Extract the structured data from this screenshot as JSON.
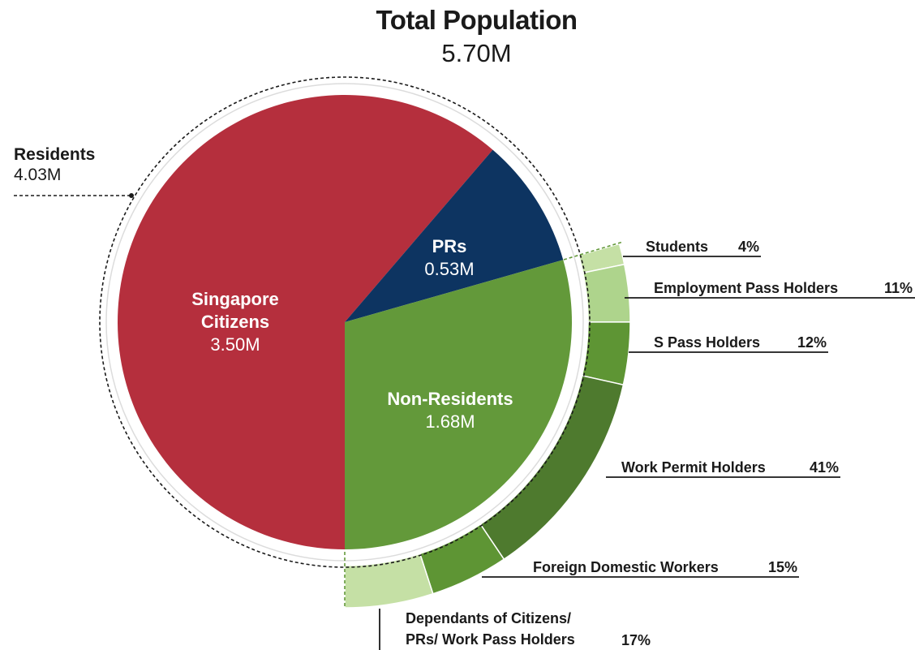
{
  "title": "Total Population",
  "total_value": "5.70M",
  "residents": {
    "label": "Residents",
    "value": "4.03M"
  },
  "labels": {
    "citizens_line1": "Singapore",
    "citizens_line2": "Citizens",
    "citizens_value": "3.50M",
    "prs_name": "PRs",
    "prs_value": "0.53M",
    "nonres_name": "Non-Residents",
    "nonres_value": "1.68M",
    "dependants_line1": "Dependants of Citizens/",
    "dependants_line2": "PRs/ Work Pass Holders"
  },
  "chart_data": [
    {
      "type": "pie",
      "title": "Total Population",
      "slices": [
        {
          "name": "Singapore Citizens",
          "value": 3.5,
          "unit": "M",
          "color": "#b52f3d"
        },
        {
          "name": "PRs",
          "value": 0.53,
          "unit": "M",
          "color": "#0d3461"
        },
        {
          "name": "Non-Residents",
          "value": 1.68,
          "unit": "M",
          "color": "#63993a"
        }
      ]
    },
    {
      "type": "pie",
      "title": "Non-Residents",
      "slices": [
        {
          "name": "Students",
          "value": 4,
          "unit": "%",
          "color": "#c5e0a5"
        },
        {
          "name": "Employment Pass Holders",
          "value": 11,
          "unit": "%",
          "color": "#aed48c"
        },
        {
          "name": "S Pass Holders",
          "value": 12,
          "unit": "%",
          "color": "#5e9534"
        },
        {
          "name": "Work Permit Holders",
          "value": 41,
          "unit": "%",
          "color": "#4e7a2e"
        },
        {
          "name": "Foreign Domestic Workers",
          "value": 15,
          "unit": "%",
          "color": "#5e9534"
        },
        {
          "name": "Dependants of Citizens/ PRs/ Work Pass Holders",
          "value": 17,
          "unit": "%",
          "color": "#c5e0a5"
        }
      ]
    }
  ],
  "callouts": [
    {
      "label": "Students",
      "pct": "4%"
    },
    {
      "label": "Employment Pass Holders",
      "pct": "11%"
    },
    {
      "label": "S Pass Holders",
      "pct": "12%"
    },
    {
      "label": "Work Permit Holders",
      "pct": "41%"
    },
    {
      "label": "Foreign Domestic Workers",
      "pct": "15%"
    },
    {
      "label": "",
      "pct": "17%"
    }
  ]
}
